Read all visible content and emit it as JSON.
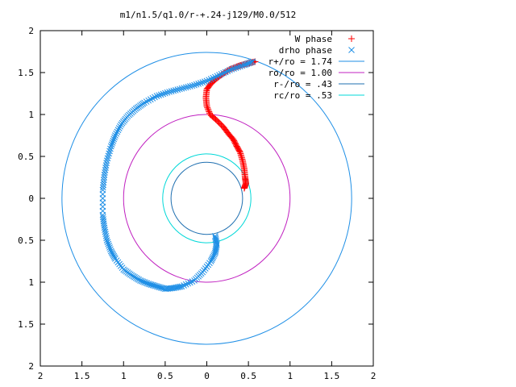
{
  "chart_data": {
    "type": "scatter",
    "title": "m1/n1.5/q1.0/r-+.24-j129/M0.0/512",
    "xlabel": "",
    "ylabel": "",
    "xlim": [
      -2,
      2
    ],
    "ylim": [
      -2,
      2
    ],
    "x_ticks": [
      "2",
      "1.5",
      "1",
      "0.5",
      "0",
      "0.5",
      "1",
      "1.5",
      "2"
    ],
    "y_ticks": [
      "2",
      "1.5",
      "1",
      "0.5",
      "0",
      "0.5",
      "1",
      "1.5",
      "2"
    ],
    "grid": false,
    "legend_position": "top-right",
    "colors": {
      "w_phase": "#ff0000",
      "drho_phase": "#1f8fe6",
      "r_plus": "#1f8fe6",
      "r_o": "#c020c0",
      "r_minus": "#1f6fb0",
      "r_c": "#00d8d8"
    },
    "circles": [
      {
        "label": "r+/ro = 1.74",
        "radius": 1.74
      },
      {
        "label": "ro/ro = 1.00",
        "radius": 1.0
      },
      {
        "label": "r-/ro = .43",
        "radius": 0.43
      },
      {
        "label": "rc/ro = .53",
        "radius": 0.53
      }
    ],
    "series": [
      {
        "name": "W phase",
        "marker": "plus",
        "x": [
          0.45,
          0.47,
          0.46,
          0.45,
          0.43,
          0.4,
          0.36,
          0.32,
          0.26,
          0.2,
          0.12,
          0.04,
          0.0,
          -0.01,
          0.0,
          0.05,
          0.12,
          0.2,
          0.28,
          0.36,
          0.42,
          0.5,
          0.58
        ],
        "y": [
          0.12,
          0.18,
          0.25,
          0.35,
          0.45,
          0.55,
          0.62,
          0.7,
          0.77,
          0.85,
          0.93,
          1.0,
          1.1,
          1.2,
          1.3,
          1.37,
          1.43,
          1.49,
          1.54,
          1.57,
          1.59,
          1.61,
          1.63
        ]
      },
      {
        "name": "drho phase",
        "marker": "cross",
        "x": [
          0.1,
          0.12,
          0.1,
          0.05,
          -0.05,
          -0.15,
          -0.3,
          -0.4,
          -0.5,
          -0.6,
          -0.7,
          -0.8,
          -0.9,
          -1.0,
          -1.1,
          -1.15,
          -1.2,
          -1.23,
          -1.25,
          -1.25,
          -1.23,
          -1.2,
          -1.15,
          -1.1,
          -1.03,
          -0.95,
          -0.85,
          -0.75,
          -0.6,
          -0.45,
          -0.3,
          -0.15,
          0.0,
          0.15,
          0.3,
          0.45,
          0.55
        ],
        "y": [
          -0.45,
          -0.55,
          -0.65,
          -0.75,
          -0.88,
          -0.98,
          -1.05,
          -1.07,
          -1.08,
          -1.05,
          -1.02,
          -0.98,
          -0.92,
          -0.85,
          -0.72,
          -0.63,
          -0.5,
          -0.35,
          -0.2,
          0.1,
          0.28,
          0.45,
          0.62,
          0.75,
          0.88,
          0.98,
          1.07,
          1.14,
          1.22,
          1.27,
          1.31,
          1.35,
          1.4,
          1.47,
          1.54,
          1.59,
          1.63
        ]
      }
    ]
  }
}
